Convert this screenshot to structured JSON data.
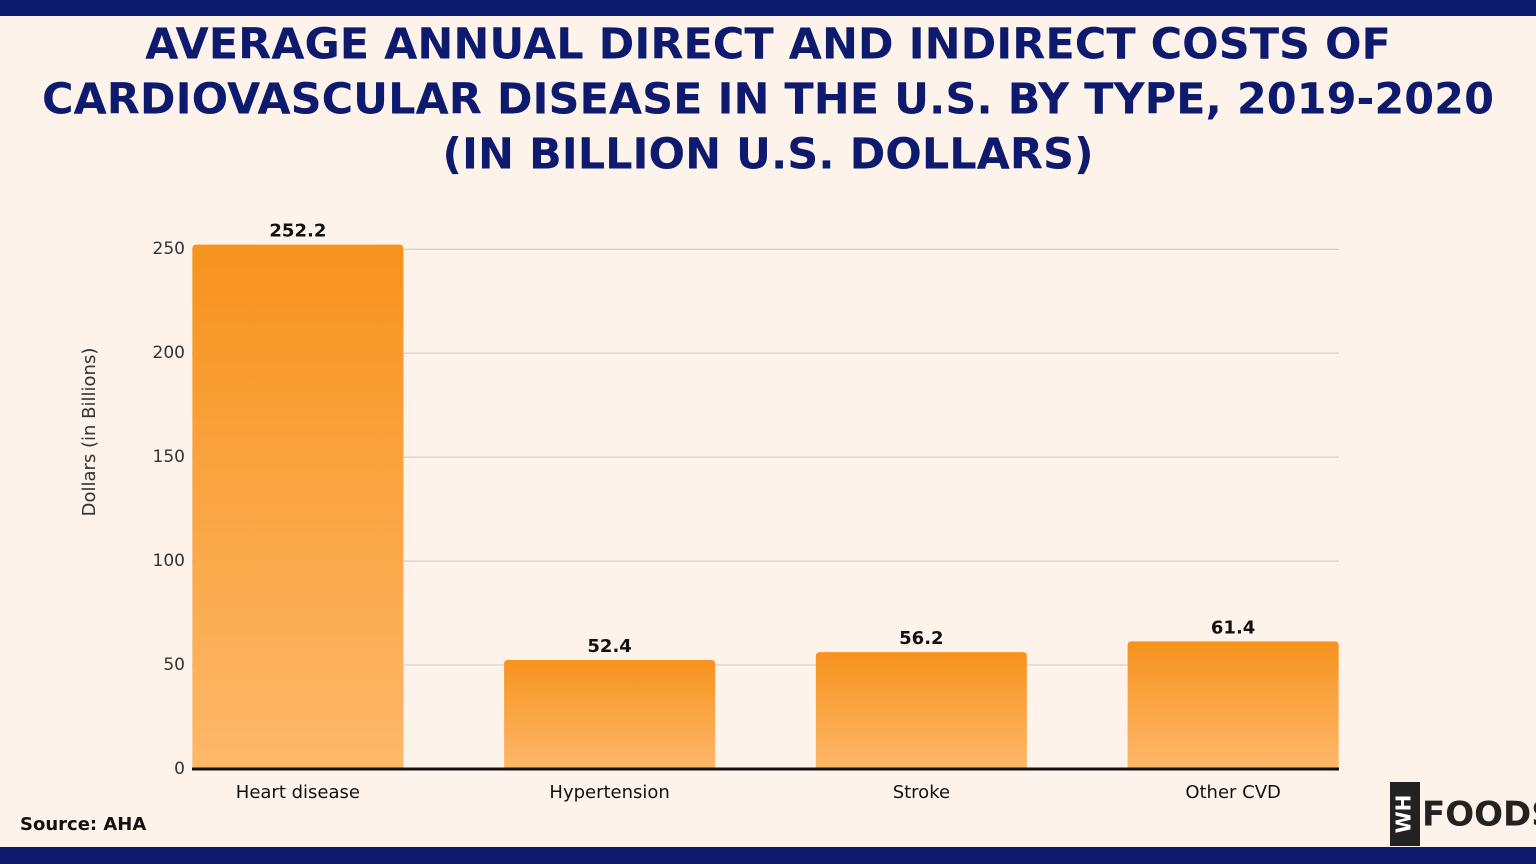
{
  "chart_data": {
    "type": "bar",
    "title": [
      "AVERAGE ANNUAL DIRECT AND INDIRECT COSTS OF",
      "CARDIOVASCULAR DISEASE IN THE U.S. BY TYPE, 2019-2020",
      "(IN BILLION U.S. DOLLARS)"
    ],
    "y_label": "Dollars (in Billions)",
    "categories": [
      "Heart disease",
      "Hypertension",
      "Stroke",
      "Other CVD"
    ],
    "values": [
      252.2,
      52.4,
      56.2,
      61.4
    ],
    "color": "#f7931e",
    "ylim": [
      0,
      265
    ],
    "yticks": [
      0,
      50,
      100,
      150,
      200,
      250
    ],
    "grid": true,
    "source": "Source: AHA",
    "logo": {
      "mark": "WH",
      "text": "FOODS"
    }
  }
}
